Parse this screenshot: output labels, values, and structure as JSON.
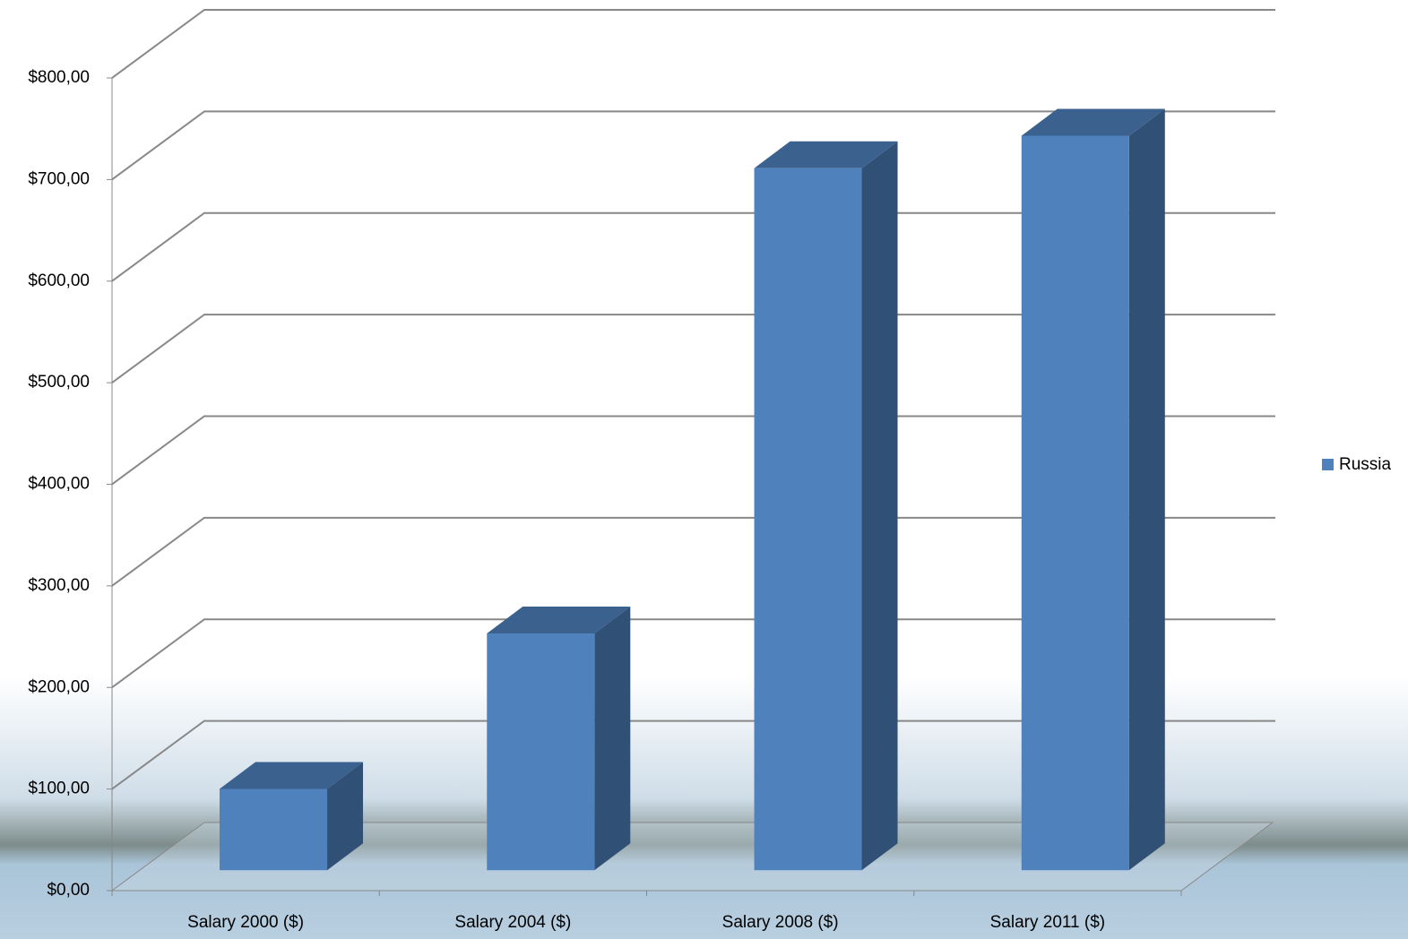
{
  "chart_data": {
    "type": "bar3d",
    "categories": [
      "Salary 2000 ($)",
      "Salary 2004 ($)",
      "Salary 2008 ($)",
      "Salary 2011 ($)"
    ],
    "series": [
      {
        "name": "Russia",
        "color": "#4f81bd",
        "values": [
          80,
          233,
          691,
          723
        ]
      }
    ],
    "ylim": [
      0,
      800
    ],
    "yticks": [
      {
        "value": 0,
        "label": "$0,00"
      },
      {
        "value": 100,
        "label": "$100,00"
      },
      {
        "value": 200,
        "label": "$200,00"
      },
      {
        "value": 300,
        "label": "$300,00"
      },
      {
        "value": 400,
        "label": "$400,00"
      },
      {
        "value": 500,
        "label": "$500,00"
      },
      {
        "value": 600,
        "label": "$600,00"
      },
      {
        "value": 700,
        "label": "$700,00"
      },
      {
        "value": 800,
        "label": "$800,00"
      }
    ],
    "grid": true,
    "legend": "right"
  }
}
